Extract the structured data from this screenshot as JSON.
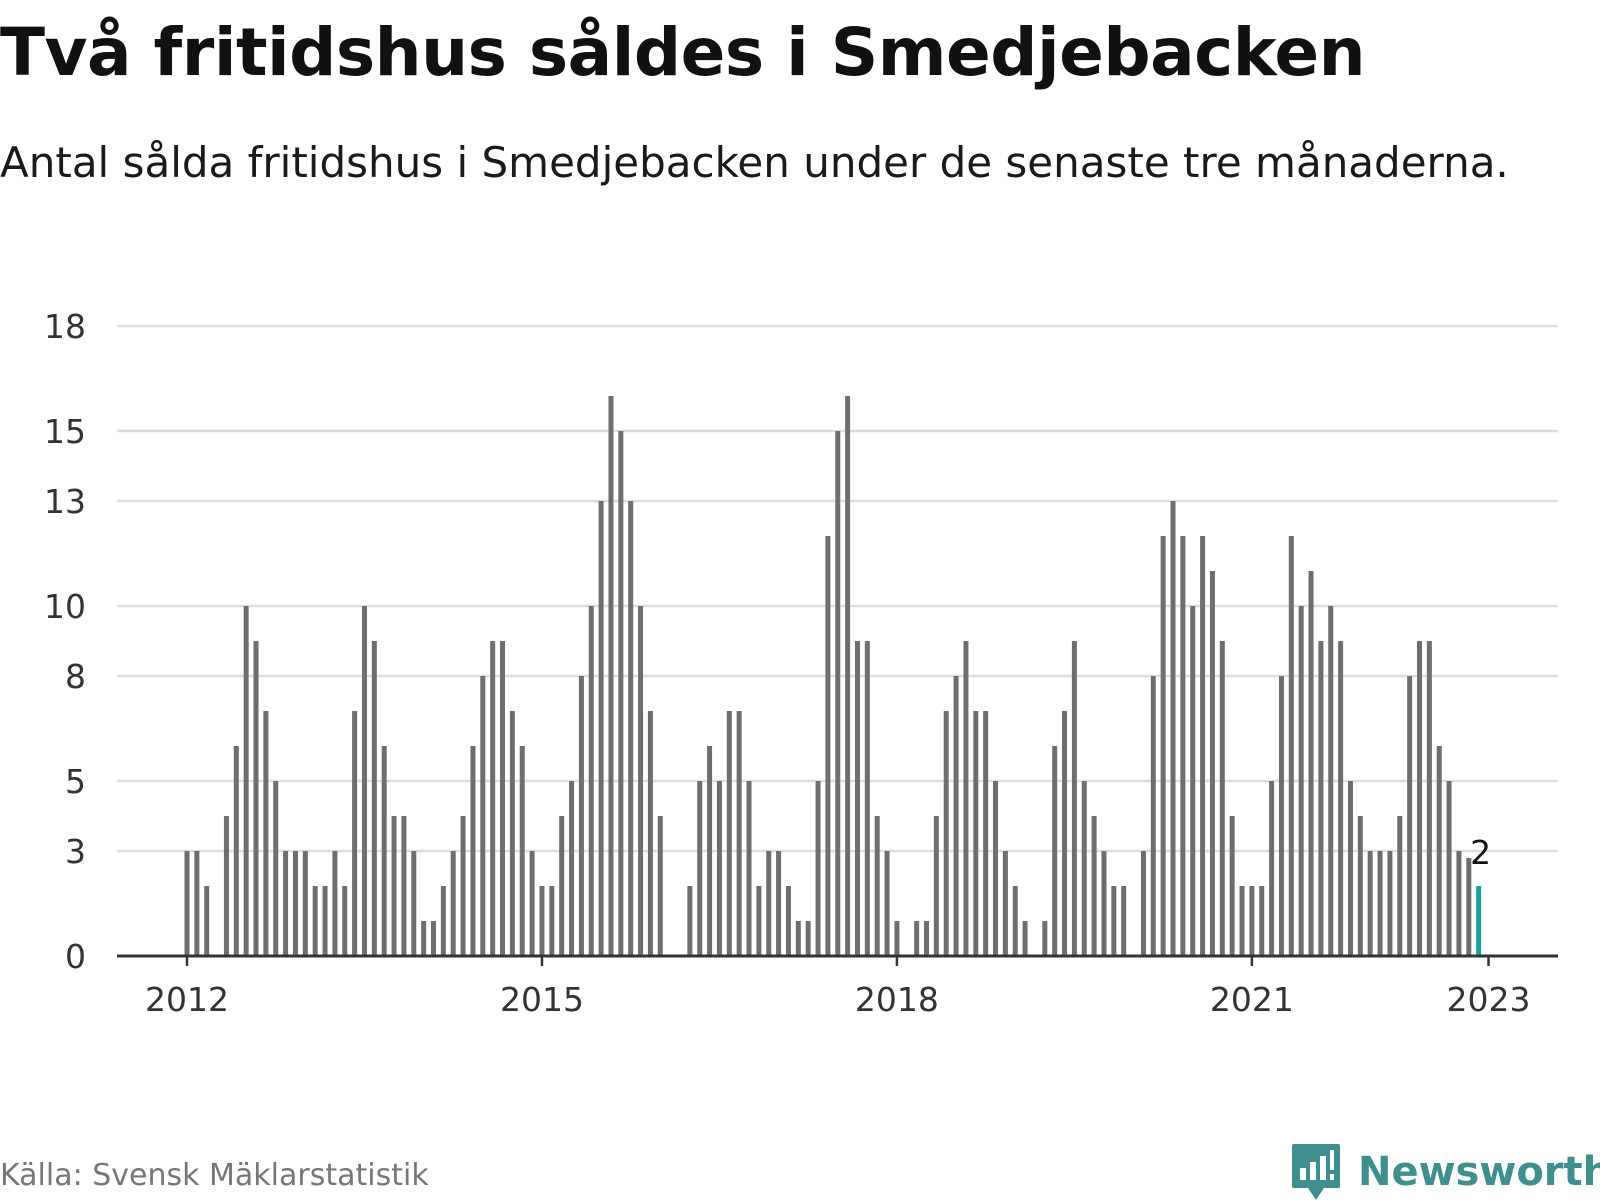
{
  "title": "Två fritidshus såldes i Smedjebacken",
  "subtitle": "Antal sålda fritidshus i Smedjebacken under de senaste tre månaderna.",
  "source": "Källa: Svensk Mäklarstatistik",
  "brand": {
    "name": "Newsworthy"
  },
  "colors": {
    "bar": "#6e6e6e",
    "highlight": "#1aa39c",
    "grid": "#dddddd",
    "axis": "#333333",
    "brand": "#3e8f8d"
  },
  "chart_data": {
    "type": "bar",
    "x_ticks": [
      "2012",
      "2015",
      "2018",
      "2021",
      "2023"
    ],
    "y_ticks": [
      "0",
      "3",
      "5",
      "8",
      "10",
      "13",
      "15",
      "18"
    ],
    "ylim": [
      0,
      18
    ],
    "grid": true,
    "last_label": "2",
    "start": "2012-01",
    "end": "2023-01",
    "values": [
      3,
      3,
      2,
      null,
      4,
      6,
      10,
      9,
      7,
      5,
      3,
      3,
      3,
      2,
      2,
      3,
      2,
      7,
      10,
      9,
      6,
      4,
      4,
      3,
      1,
      1,
      2,
      3,
      4,
      6,
      8,
      9,
      9,
      7,
      6,
      3,
      2,
      2,
      4,
      5,
      8,
      10,
      13,
      16,
      15,
      13,
      10,
      7,
      4,
      null,
      null,
      2,
      5,
      6,
      5,
      7,
      7,
      5,
      2,
      3,
      3,
      2,
      1,
      1,
      5,
      12,
      15,
      16,
      9,
      9,
      4,
      3,
      1,
      null,
      1,
      1,
      4,
      7,
      8,
      9,
      7,
      7,
      5,
      3,
      2,
      1,
      null,
      1,
      6,
      7,
      9,
      5,
      4,
      3,
      2,
      2,
      null,
      3,
      8,
      12,
      13,
      12,
      10,
      12,
      11,
      9,
      4,
      2,
      2,
      2,
      5,
      8,
      12,
      10,
      11,
      9,
      10,
      9,
      5,
      4,
      3,
      3,
      3,
      4,
      8,
      9,
      9,
      6,
      5,
      3,
      2.8,
      2
    ]
  }
}
